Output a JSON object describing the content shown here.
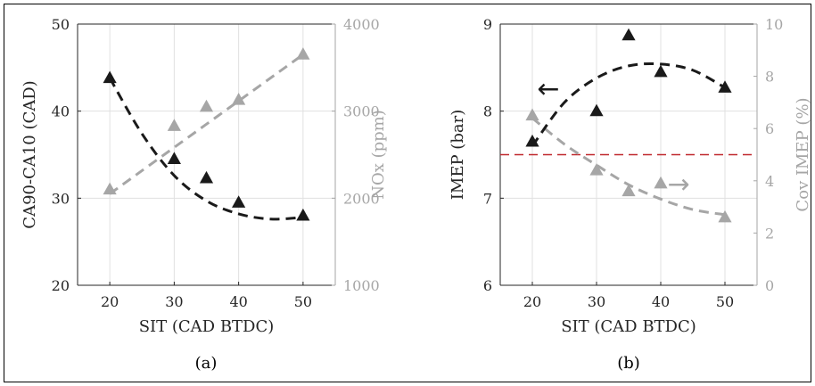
{
  "colors": {
    "primary": "#1a1a1a",
    "secondary": "#a6a6a6",
    "reference": "#c0282d"
  },
  "chart_data": [
    {
      "type": "scatter",
      "panel_label": "(a)",
      "xlabel": "SIT (CAD BTDC)",
      "ylabel_left": "CA90-CA10 (CAD)",
      "ylabel_right": "NOx (ppm)",
      "xlim": [
        15,
        55
      ],
      "ylim_left": [
        20,
        50
      ],
      "ylim_right": [
        1000,
        4000
      ],
      "xticks": [
        20,
        30,
        40,
        50
      ],
      "yticks_left": [
        20,
        30,
        40,
        50
      ],
      "yticks_right": [
        1000,
        2000,
        3000,
        4000
      ],
      "grid": true,
      "series": [
        {
          "axis": "left",
          "color": "primary",
          "marker": "triangle",
          "x": [
            20,
            30,
            35,
            40,
            50
          ],
          "y": [
            43.8,
            34.5,
            32.3,
            29.5,
            28.0
          ],
          "fit_x": [
            20,
            25,
            30,
            35,
            40,
            45,
            50
          ],
          "fit_y": [
            43.8,
            37.4,
            32.6,
            29.7,
            28.2,
            27.6,
            27.8
          ]
        },
        {
          "axis": "right",
          "color": "secondary",
          "marker": "triangle",
          "x": [
            20,
            30,
            35,
            40,
            50
          ],
          "y": [
            2100,
            2830,
            3050,
            3130,
            3650
          ],
          "fit_x": [
            20,
            50
          ],
          "fit_y": [
            2050,
            3650
          ]
        }
      ]
    },
    {
      "type": "scatter",
      "panel_label": "(b)",
      "xlabel": "SIT (CAD BTDC)",
      "ylabel_left": "IMEP (bar)",
      "ylabel_right": "Cov IMEP (%)",
      "xlim": [
        15,
        55
      ],
      "ylim_left": [
        6,
        9
      ],
      "ylim_right": [
        0,
        10
      ],
      "xticks": [
        20,
        30,
        40,
        50
      ],
      "yticks_left": [
        6,
        7,
        8,
        9
      ],
      "yticks_right": [
        0,
        2,
        4,
        6,
        8,
        10
      ],
      "grid": true,
      "reference_line": {
        "axis": "left",
        "y": 7.5,
        "color": "reference",
        "style": "dashed"
      },
      "annotations": [
        {
          "text": "←",
          "x": 22.5,
          "y": 8.25,
          "color": "primary"
        },
        {
          "text": "→",
          "x": 42.8,
          "y": 7.15,
          "color": "secondary"
        }
      ],
      "series": [
        {
          "axis": "left",
          "color": "primary",
          "marker": "triangle",
          "x": [
            20,
            30,
            35,
            40,
            50
          ],
          "y": [
            7.65,
            8.0,
            8.87,
            8.45,
            8.27
          ],
          "fit_x": [
            20,
            25,
            30,
            35,
            40,
            45,
            50
          ],
          "fit_y": [
            7.6,
            8.1,
            8.38,
            8.52,
            8.54,
            8.47,
            8.27
          ]
        },
        {
          "axis": "right",
          "color": "secondary",
          "marker": "triangle",
          "x": [
            20,
            30,
            35,
            40,
            50
          ],
          "y": [
            6.5,
            4.4,
            3.6,
            3.9,
            2.6
          ],
          "fit_x": [
            20,
            25,
            30,
            35,
            40,
            45,
            50
          ],
          "fit_y": [
            6.4,
            5.4,
            4.6,
            3.85,
            3.3,
            2.9,
            2.7
          ]
        }
      ]
    }
  ]
}
